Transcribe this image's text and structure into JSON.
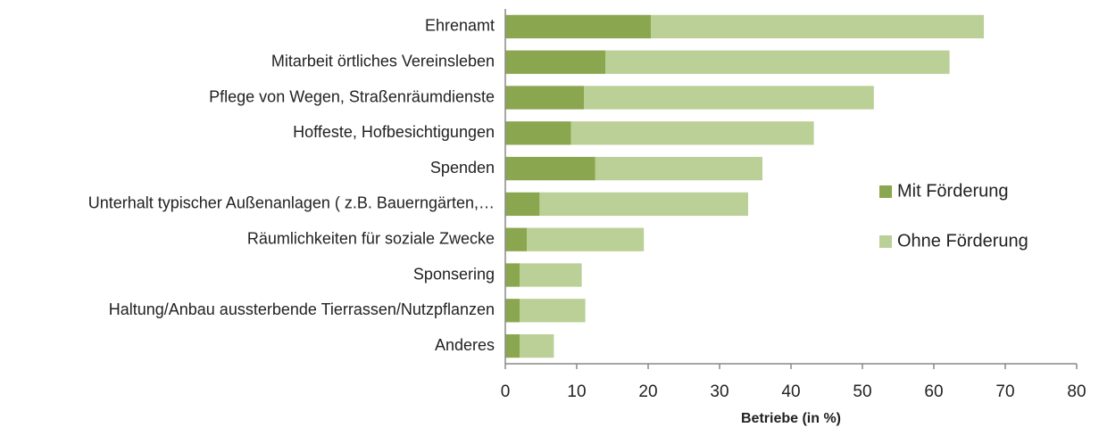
{
  "chart_data": {
    "type": "stacked-barh",
    "x_label": "Betriebe (in %)",
    "categories": [
      "Ehrenamt",
      "Mitarbeit örtliches Vereinsleben",
      "Pflege von Wegen, Straßenräumdienste",
      "Hoffeste, Hofbesichtigungen",
      "Spenden",
      "Unterhalt typischer Außenanlagen ( z.B. Bauerngärten,…",
      "Räumlichkeiten für soziale Zwecke",
      "Sponsering",
      "Haltung/Anbau aussterbende Tierrassen/Nutzpflanzen",
      "Anderes"
    ],
    "series": [
      {
        "name": "Mit Förderung",
        "color": "#8aa64f",
        "values": [
          20.4,
          14,
          11,
          9.2,
          12.6,
          4.8,
          3,
          2,
          2,
          2
        ]
      },
      {
        "name": "Ohne Förderung",
        "color": "#bad096",
        "values": [
          46.6,
          48.2,
          40.6,
          34,
          23.4,
          29.2,
          16.4,
          8.7,
          9.2,
          4.8
        ]
      }
    ],
    "xlim": [
      0,
      80
    ],
    "xticks": [
      0,
      10,
      20,
      30,
      40,
      50,
      60,
      70,
      80
    ],
    "legend": "right"
  }
}
